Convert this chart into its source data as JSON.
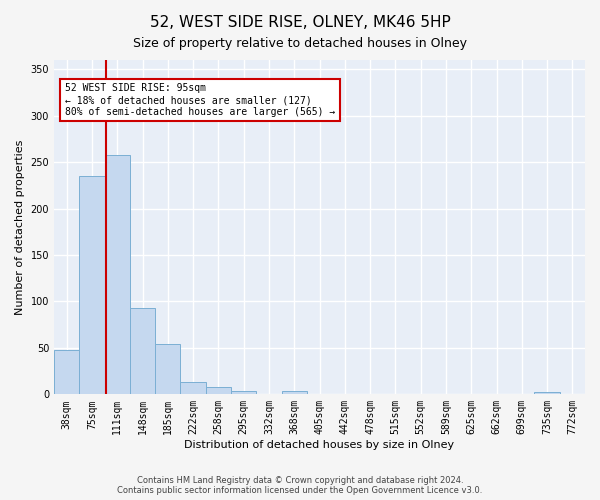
{
  "title": "52, WEST SIDE RISE, OLNEY, MK46 5HP",
  "subtitle": "Size of property relative to detached houses in Olney",
  "xlabel": "Distribution of detached houses by size in Olney",
  "ylabel": "Number of detached properties",
  "bar_labels": [
    "38sqm",
    "75sqm",
    "111sqm",
    "148sqm",
    "185sqm",
    "222sqm",
    "258sqm",
    "295sqm",
    "332sqm",
    "368sqm",
    "405sqm",
    "442sqm",
    "478sqm",
    "515sqm",
    "552sqm",
    "589sqm",
    "625sqm",
    "662sqm",
    "699sqm",
    "735sqm",
    "772sqm"
  ],
  "bar_values": [
    48,
    235,
    258,
    93,
    54,
    13,
    8,
    4,
    0,
    4,
    0,
    0,
    0,
    0,
    0,
    0,
    0,
    0,
    0,
    3,
    0
  ],
  "bar_color": "#c5d8ef",
  "bar_edgecolor": "#7bafd4",
  "ylim": [
    0,
    360
  ],
  "yticks": [
    0,
    50,
    100,
    150,
    200,
    250,
    300,
    350
  ],
  "red_line_color": "#cc0000",
  "annotation_text": "52 WEST SIDE RISE: 95sqm\n← 18% of detached houses are smaller (127)\n80% of semi-detached houses are larger (565) →",
  "annotation_box_facecolor": "#ffffff",
  "annotation_box_edgecolor": "#cc0000",
  "footer_line1": "Contains HM Land Registry data © Crown copyright and database right 2024.",
  "footer_line2": "Contains public sector information licensed under the Open Government Licence v3.0.",
  "background_color": "#e8eef7",
  "grid_color": "#ffffff",
  "title_fontsize": 11,
  "subtitle_fontsize": 9,
  "footer_fontsize": 6,
  "xlabel_fontsize": 8,
  "ylabel_fontsize": 8,
  "tick_fontsize": 7,
  "annotation_fontsize": 7
}
